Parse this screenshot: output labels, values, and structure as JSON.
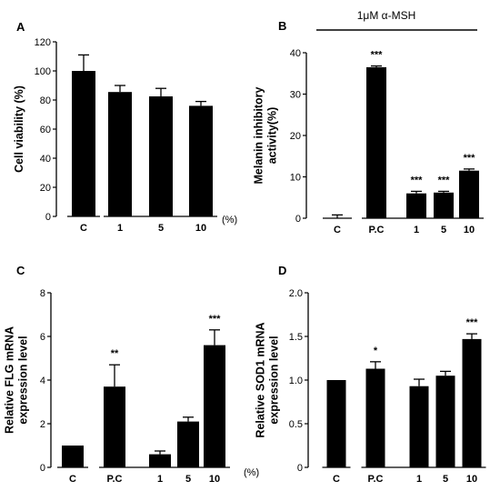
{
  "chart_data": [
    {
      "panel": "A",
      "type": "bar",
      "categories": [
        "C",
        "1",
        "5",
        "10"
      ],
      "values": [
        100,
        85.5,
        82.5,
        76
      ],
      "errors": [
        11,
        4.5,
        5.5,
        3
      ],
      "significance": [
        "",
        "",
        "",
        ""
      ],
      "ylabel": "Cell viability (%)",
      "xunit": "(%)",
      "ylim": [
        0,
        120
      ],
      "yticks": [
        0,
        20,
        40,
        60,
        80,
        100,
        120
      ],
      "treatment_label": ""
    },
    {
      "panel": "B",
      "type": "bar",
      "categories": [
        "C",
        "P.C",
        "1",
        "5",
        "10"
      ],
      "values": [
        0,
        36.5,
        6,
        6.2,
        11.5
      ],
      "errors": [
        0.8,
        0.3,
        0.5,
        0.3,
        0.4
      ],
      "significance": [
        "",
        "***",
        "***",
        "***",
        "***"
      ],
      "ylabel": "Melanin inhibitory activity(%)",
      "xunit": "",
      "ylim": [
        0,
        40
      ],
      "yticks": [
        0,
        10,
        20,
        30,
        40
      ],
      "treatment_label": "1μM α-MSH"
    },
    {
      "panel": "C",
      "type": "bar",
      "categories": [
        "C",
        "P.C",
        "1",
        "5",
        "10"
      ],
      "values": [
        1,
        3.7,
        0.6,
        2.1,
        5.6
      ],
      "errors": [
        0,
        1.0,
        0.15,
        0.2,
        0.7
      ],
      "significance": [
        "",
        "**",
        "",
        "",
        "***"
      ],
      "ylabel": "Relative FLG mRNA expression level",
      "xunit": "(%)",
      "ylim": [
        0,
        8
      ],
      "yticks": [
        0,
        2,
        4,
        6,
        8
      ],
      "treatment_label": ""
    },
    {
      "panel": "D",
      "type": "bar",
      "categories": [
        "C",
        "P.C",
        "1",
        "5",
        "10"
      ],
      "values": [
        1,
        1.13,
        0.93,
        1.05,
        1.47
      ],
      "errors": [
        0,
        0.08,
        0.08,
        0.05,
        0.06
      ],
      "significance": [
        "",
        "*",
        "",
        "",
        "***"
      ],
      "ylabel": "Relative SOD1 mRNA expression level",
      "xunit": "",
      "ylim": [
        0,
        2.0
      ],
      "yticks": [
        "0",
        "0.5",
        "1.0",
        "1.5",
        "2.0"
      ],
      "treatment_label": ""
    }
  ]
}
